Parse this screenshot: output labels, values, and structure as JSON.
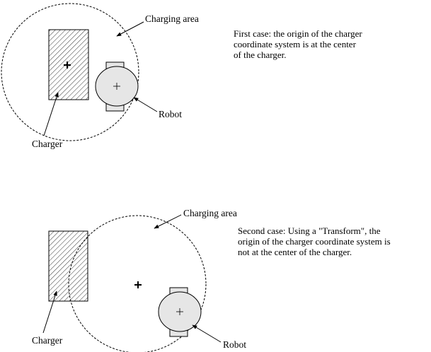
{
  "panels": [
    {
      "area_label": "Charging area",
      "charger_label": "Charger",
      "robot_label": "Robot",
      "caption": [
        "First  case: the origin of the charger",
        "coordinate system is at the center",
        "of the charger."
      ]
    },
    {
      "area_label": "Charging area",
      "charger_label": "Charger",
      "robot_label": "Robot",
      "caption": [
        "Second case: Using a \"Transform\", the",
        "origin of the charger coordinate system is",
        "not at the center of the charger."
      ]
    }
  ],
  "colors": {
    "line": "#000000",
    "robot_fill": "#e6e6e6",
    "hatch": "#000000",
    "background": "#ffffff"
  }
}
